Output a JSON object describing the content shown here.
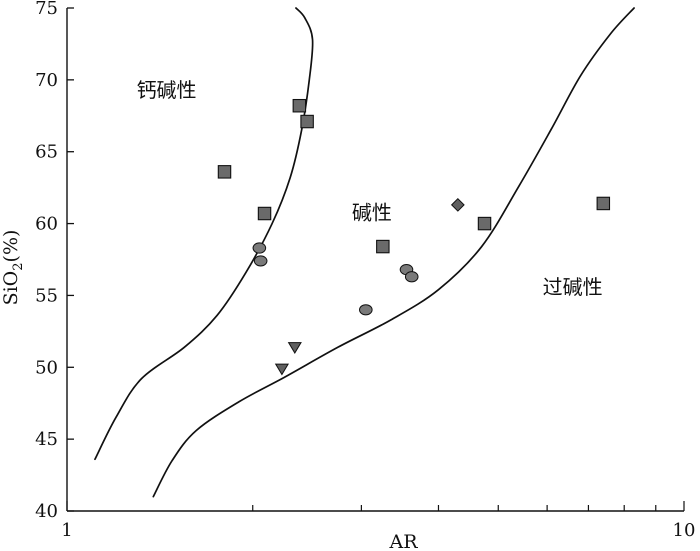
{
  "chart_data": {
    "type": "scatter",
    "x_scale": "log",
    "xlabel": "AR",
    "ylabel": {
      "prefix": "SiO",
      "subscript": "2",
      "suffix": "(%)"
    },
    "xlim": [
      1,
      10
    ],
    "ylim": [
      40,
      75
    ],
    "x_ticks": [
      {
        "value": 1,
        "label": "1"
      },
      {
        "value": 10,
        "label": "10"
      }
    ],
    "y_ticks": [
      {
        "value": 40,
        "label": "40"
      },
      {
        "value": 45,
        "label": "45"
      },
      {
        "value": 50,
        "label": "50"
      },
      {
        "value": 55,
        "label": "55"
      },
      {
        "value": 60,
        "label": "60"
      },
      {
        "value": 65,
        "label": "65"
      },
      {
        "value": 70,
        "label": "70"
      },
      {
        "value": 75,
        "label": "75"
      }
    ],
    "grid": false,
    "legend": "none",
    "regions": [
      {
        "label": "钙碱性",
        "x": 1.45,
        "y": 68.8
      },
      {
        "label": "碱性",
        "x": 3.12,
        "y": 60.3
      },
      {
        "label": "过碱性",
        "x": 6.6,
        "y": 55.1
      }
    ],
    "boundaries": [
      {
        "name": "calc-alkaline-alkaline-boundary",
        "points": [
          [
            1.11,
            43.6
          ],
          [
            1.2,
            46.5
          ],
          [
            1.32,
            49.2
          ],
          [
            1.55,
            51.4
          ],
          [
            1.75,
            53.6
          ],
          [
            1.95,
            56.6
          ],
          [
            2.15,
            60.0
          ],
          [
            2.3,
            63.2
          ],
          [
            2.4,
            66.5
          ],
          [
            2.47,
            70.0
          ],
          [
            2.5,
            72.8
          ],
          [
            2.43,
            74.3
          ],
          [
            2.35,
            75.0
          ]
        ]
      },
      {
        "name": "alkaline-peralkaline-boundary",
        "points": [
          [
            1.38,
            41.0
          ],
          [
            1.48,
            43.5
          ],
          [
            1.62,
            45.6
          ],
          [
            1.9,
            47.6
          ],
          [
            2.25,
            49.3
          ],
          [
            2.75,
            51.4
          ],
          [
            3.35,
            53.3
          ],
          [
            4.0,
            55.4
          ],
          [
            4.7,
            58.4
          ],
          [
            5.4,
            62.6
          ],
          [
            6.1,
            66.6
          ],
          [
            6.8,
            70.3
          ],
          [
            7.6,
            73.2
          ],
          [
            8.3,
            75.0
          ]
        ]
      }
    ],
    "series": [
      {
        "marker": "square",
        "color": "#6a6a6a",
        "points": [
          {
            "x": 2.38,
            "y": 68.2
          },
          {
            "x": 2.45,
            "y": 67.1
          },
          {
            "x": 1.8,
            "y": 63.6
          },
          {
            "x": 2.09,
            "y": 60.7
          },
          {
            "x": 3.25,
            "y": 58.4
          },
          {
            "x": 4.75,
            "y": 60.0
          },
          {
            "x": 7.4,
            "y": 61.4
          }
        ]
      },
      {
        "marker": "circle",
        "color": "#7a7a7a",
        "points": [
          {
            "x": 2.05,
            "y": 58.3
          },
          {
            "x": 2.06,
            "y": 57.4
          },
          {
            "x": 3.55,
            "y": 56.8
          },
          {
            "x": 3.62,
            "y": 56.3
          },
          {
            "x": 3.05,
            "y": 54.0
          }
        ]
      },
      {
        "marker": "diamond",
        "color": "#5f5f5f",
        "points": [
          {
            "x": 4.3,
            "y": 61.3
          }
        ]
      },
      {
        "marker": "triangle-down",
        "color": "#5f5f5f",
        "points": [
          {
            "x": 2.34,
            "y": 51.4
          },
          {
            "x": 2.23,
            "y": 49.9
          }
        ]
      }
    ]
  }
}
